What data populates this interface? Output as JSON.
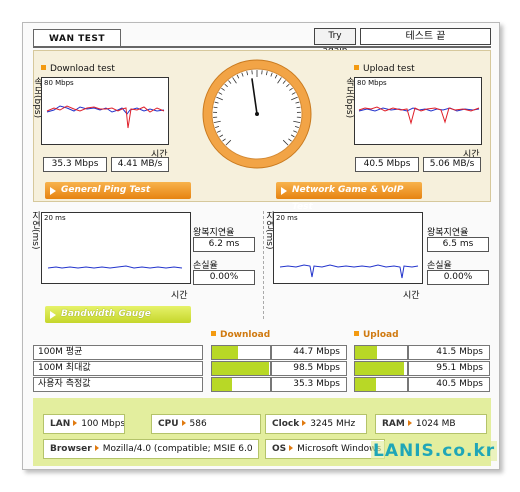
{
  "tab": {
    "title": "WAN TEST"
  },
  "header": {
    "retry_label": "Try again",
    "status": "테스트 끝"
  },
  "download": {
    "title": "Download test",
    "scale": "80 Mbps",
    "y_label": "속도(bps)",
    "x_label": "시간",
    "mbps": "35.3 Mbps",
    "mbs": "4.41 MB/s"
  },
  "upload": {
    "title": "Upload test",
    "scale": "80 Mbps",
    "y_label": "속도(bps)",
    "x_label": "시간",
    "mbps": "40.5 Mbps",
    "mbs": "5.06 MB/s"
  },
  "gauge": {
    "needle_fraction": 0.47,
    "accent": "#f0922a"
  },
  "sections": {
    "ping": "General Ping Test",
    "game": "Network Game & VoIP Test",
    "bandwidth": "Bandwidth Gauge"
  },
  "ping": {
    "y_label": "지연(ms)",
    "scale": "20 ms",
    "x_label": "시간",
    "delay_label": "왕복지연율",
    "delay": "6.2 ms",
    "loss_label": "손실율",
    "loss": "0.00%"
  },
  "game": {
    "y_label": "지연(ms)",
    "scale": "20 ms",
    "x_label": "시간",
    "delay_label": "왕복지연율",
    "delay": "6.5 ms",
    "loss_label": "손실율",
    "loss": "0.00%"
  },
  "bandwidth": {
    "download_header": "Download",
    "upload_header": "Upload",
    "rows": [
      {
        "label": "100M 평균",
        "down": "44.7 Mbps",
        "down_fill": 0.447,
        "up": "41.5 Mbps",
        "up_fill": 0.415
      },
      {
        "label": "100M 최대값",
        "down": "98.5 Mbps",
        "down_fill": 0.985,
        "up": "95.1 Mbps",
        "up_fill": 0.951
      },
      {
        "label": "사용자 측정값",
        "down": "35.3 Mbps",
        "down_fill": 0.353,
        "up": "40.5 Mbps",
        "up_fill": 0.405
      }
    ]
  },
  "system": {
    "lan_label": "LAN",
    "lan": "100 Mbps",
    "cpu_label": "CPU",
    "cpu": "586",
    "clock_label": "Clock",
    "clock": "3245 MHz",
    "ram_label": "RAM",
    "ram": "1024 MB",
    "browser_label": "Browser",
    "browser": "Mozilla/4.0 (compatible; MSIE 6.0",
    "os_label": "OS",
    "os": "Microsoft Windows XP"
  },
  "logo": {
    "text": "LANIS.co.kr"
  },
  "colors": {
    "orange": "#f0922a",
    "lime": "#b8d826",
    "red_line": "#e0202a",
    "blue_line": "#2233cc"
  }
}
